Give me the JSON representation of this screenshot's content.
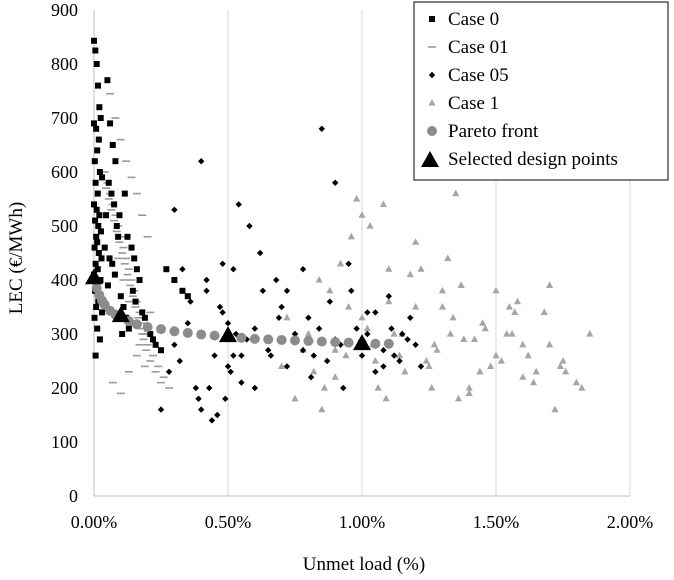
{
  "chart_data": {
    "type": "scatter",
    "title": "",
    "xlabel": "Unmet load (%)",
    "ylabel": "LEC (€/MWh)",
    "xlim": [
      0,
      2
    ],
    "ylim": [
      0,
      900
    ],
    "x_ticks": [
      "0.00%",
      "0.50%",
      "1.00%",
      "1.50%",
      "2.00%"
    ],
    "y_ticks": [
      "0",
      "100",
      "200",
      "300",
      "400",
      "500",
      "600",
      "700",
      "800",
      "900"
    ],
    "grid": "vertical",
    "legend_position": "top-right",
    "colors": {
      "case0": "#000000",
      "case01": "#9a9a9a",
      "case05": "#000000",
      "case1": "#a6a6a6",
      "pareto": "#8c8c8c",
      "selected": "#000000"
    },
    "series": [
      {
        "name": "Case 0",
        "marker": "square",
        "x": [
          0.0,
          0.005,
          0.01,
          0.015,
          0.02,
          0.025,
          0.0,
          0.008,
          0.018,
          0.012,
          0.003,
          0.022,
          0.03,
          0.006,
          0.014,
          0.0,
          0.01,
          0.02,
          0.004,
          0.016,
          0.026,
          0.008,
          0.012,
          0.002,
          0.018,
          0.028,
          0.006,
          0.014,
          0.0,
          0.024,
          0.01,
          0.004,
          0.02,
          0.016,
          0.008,
          0.03,
          0.002,
          0.012,
          0.022,
          0.006,
          0.05,
          0.06,
          0.07,
          0.08,
          0.055,
          0.065,
          0.075,
          0.045,
          0.085,
          0.09,
          0.04,
          0.058,
          0.068,
          0.078,
          0.052,
          0.1,
          0.11,
          0.12,
          0.13,
          0.105,
          0.115,
          0.095,
          0.125,
          0.14,
          0.15,
          0.16,
          0.17,
          0.145,
          0.155,
          0.18,
          0.19,
          0.2,
          0.21,
          0.22,
          0.23,
          0.25,
          0.27,
          0.3,
          0.33,
          0.35
        ],
        "y": [
          843,
          825,
          800,
          760,
          720,
          700,
          690,
          680,
          660,
          640,
          620,
          600,
          590,
          580,
          560,
          540,
          530,
          520,
          510,
          500,
          490,
          480,
          470,
          460,
          450,
          440,
          430,
          420,
          410,
          400,
          390,
          380,
          370,
          360,
          350,
          340,
          330,
          310,
          290,
          260,
          770,
          690,
          650,
          620,
          580,
          560,
          540,
          520,
          500,
          480,
          460,
          440,
          430,
          410,
          390,
          370,
          350,
          330,
          310,
          300,
          560,
          520,
          480,
          460,
          440,
          420,
          400,
          380,
          360,
          340,
          330,
          310,
          300,
          290,
          280,
          270,
          420,
          400,
          380,
          370
        ]
      },
      {
        "name": "Case 01",
        "marker": "dash",
        "x": [
          0.04,
          0.05,
          0.06,
          0.07,
          0.08,
          0.09,
          0.1,
          0.11,
          0.12,
          0.13,
          0.14,
          0.15,
          0.16,
          0.17,
          0.18,
          0.19,
          0.2,
          0.22,
          0.24,
          0.26,
          0.045,
          0.055,
          0.065,
          0.075,
          0.085,
          0.095,
          0.105,
          0.115,
          0.125,
          0.135,
          0.145,
          0.155,
          0.165,
          0.175,
          0.185,
          0.195,
          0.21,
          0.23,
          0.25,
          0.28,
          0.06,
          0.08,
          0.1,
          0.12,
          0.14,
          0.16,
          0.18,
          0.2,
          0.09,
          0.11,
          0.13,
          0.15,
          0.17,
          0.19,
          0.07,
          0.1,
          0.13,
          0.16,
          0.18,
          0.21
        ],
        "y": [
          600,
          580,
          560,
          540,
          520,
          500,
          480,
          460,
          440,
          420,
          400,
          380,
          360,
          340,
          320,
          300,
          280,
          260,
          240,
          220,
          570,
          550,
          530,
          510,
          490,
          470,
          450,
          430,
          410,
          390,
          370,
          350,
          330,
          310,
          290,
          270,
          250,
          230,
          210,
          200,
          745,
          700,
          660,
          620,
          590,
          560,
          520,
          480,
          440,
          400,
          360,
          320,
          280,
          240,
          210,
          190,
          230,
          260,
          300,
          340
        ]
      },
      {
        "name": "Case 05",
        "marker": "diamond",
        "x": [
          0.25,
          0.28,
          0.3,
          0.32,
          0.35,
          0.38,
          0.4,
          0.42,
          0.45,
          0.48,
          0.5,
          0.52,
          0.55,
          0.58,
          0.6,
          0.62,
          0.65,
          0.68,
          0.7,
          0.72,
          0.75,
          0.78,
          0.8,
          0.82,
          0.85,
          0.88,
          0.9,
          0.92,
          0.95,
          0.98,
          1.0,
          1.02,
          1.05,
          1.08,
          1.1,
          1.12,
          1.15,
          1.18,
          1.2,
          1.22,
          0.3,
          0.33,
          0.36,
          0.39,
          0.42,
          0.45,
          0.48,
          0.51,
          0.54,
          0.57,
          0.6,
          0.63,
          0.66,
          0.69,
          0.72,
          0.75,
          0.78,
          0.81,
          0.84,
          0.87,
          0.9,
          0.93,
          0.96,
          0.99,
          1.02,
          1.05,
          1.08,
          1.11,
          1.14,
          1.17,
          0.4,
          0.43,
          0.46,
          0.49,
          0.52,
          0.55,
          0.44,
          0.47,
          0.5,
          0.53
        ],
        "y": [
          160,
          230,
          280,
          250,
          320,
          200,
          620,
          380,
          300,
          340,
          240,
          420,
          260,
          500,
          310,
          450,
          270,
          400,
          350,
          380,
          300,
          420,
          330,
          260,
          680,
          360,
          580,
          280,
          430,
          310,
          260,
          300,
          340,
          240,
          370,
          260,
          300,
          330,
          280,
          240,
          530,
          420,
          360,
          180,
          400,
          260,
          430,
          230,
          540,
          290,
          200,
          380,
          260,
          330,
          240,
          300,
          270,
          220,
          310,
          250,
          290,
          200,
          380,
          280,
          340,
          230,
          270,
          310,
          250,
          290,
          160,
          200,
          150,
          180,
          260,
          210,
          140,
          350,
          320,
          300
        ]
      },
      {
        "name": "Case 1",
        "marker": "triangle",
        "x": [
          0.7,
          0.75,
          0.8,
          0.85,
          0.9,
          0.95,
          1.0,
          1.05,
          1.1,
          1.15,
          1.2,
          1.25,
          1.3,
          1.35,
          1.4,
          1.45,
          1.5,
          1.55,
          1.6,
          1.65,
          1.7,
          1.75,
          1.8,
          1.85,
          0.72,
          0.78,
          0.84,
          0.9,
          0.96,
          1.02,
          1.08,
          1.14,
          1.2,
          1.26,
          1.32,
          1.38,
          1.44,
          1.5,
          1.56,
          1.62,
          1.68,
          1.74,
          0.82,
          0.88,
          0.94,
          1.0,
          1.06,
          1.12,
          1.18,
          1.24,
          1.3,
          1.36,
          1.42,
          1.48,
          1.54,
          1.6,
          0.98,
          1.04,
          1.1,
          1.16,
          1.22,
          1.28,
          1.34,
          1.4,
          1.46,
          1.52,
          1.58,
          1.64,
          1.7,
          1.76,
          0.86,
          0.92,
          1.03,
          1.09,
          1.27,
          1.33,
          1.37,
          1.57,
          1.72,
          1.82
        ],
        "y": [
          240,
          180,
          300,
          160,
          270,
          350,
          520,
          250,
          420,
          300,
          470,
          240,
          380,
          560,
          200,
          320,
          260,
          350,
          280,
          230,
          390,
          250,
          210,
          300,
          330,
          270,
          400,
          220,
          480,
          310,
          540,
          260,
          350,
          200,
          440,
          290,
          230,
          380,
          300,
          260,
          340,
          240,
          230,
          380,
          260,
          330,
          200,
          300,
          410,
          250,
          350,
          180,
          290,
          240,
          300,
          220,
          550,
          280,
          360,
          230,
          420,
          270,
          330,
          190,
          310,
          250,
          360,
          210,
          280,
          230,
          200,
          430,
          500,
          180,
          280,
          300,
          390,
          340,
          160,
          200
        ]
      },
      {
        "name": "Pareto front",
        "marker": "circle",
        "x": [
          0.0,
          0.01,
          0.02,
          0.03,
          0.04,
          0.06,
          0.08,
          0.1,
          0.13,
          0.16,
          0.2,
          0.25,
          0.3,
          0.35,
          0.4,
          0.45,
          0.5,
          0.55,
          0.6,
          0.65,
          0.7,
          0.75,
          0.8,
          0.85,
          0.9,
          0.95,
          1.0,
          1.05,
          1.1
        ],
        "y": [
          400,
          385,
          372,
          362,
          354,
          343,
          336,
          332,
          324,
          318,
          313,
          309,
          305,
          302,
          299,
          297,
          295,
          293,
          291,
          290,
          289,
          288,
          287,
          286,
          285,
          284,
          283,
          282,
          282
        ]
      },
      {
        "name": "Selected design points",
        "marker": "big-triangle",
        "x": [
          0.0,
          0.1,
          0.5,
          1.0
        ],
        "y": [
          405,
          335,
          298,
          283
        ]
      }
    ]
  }
}
